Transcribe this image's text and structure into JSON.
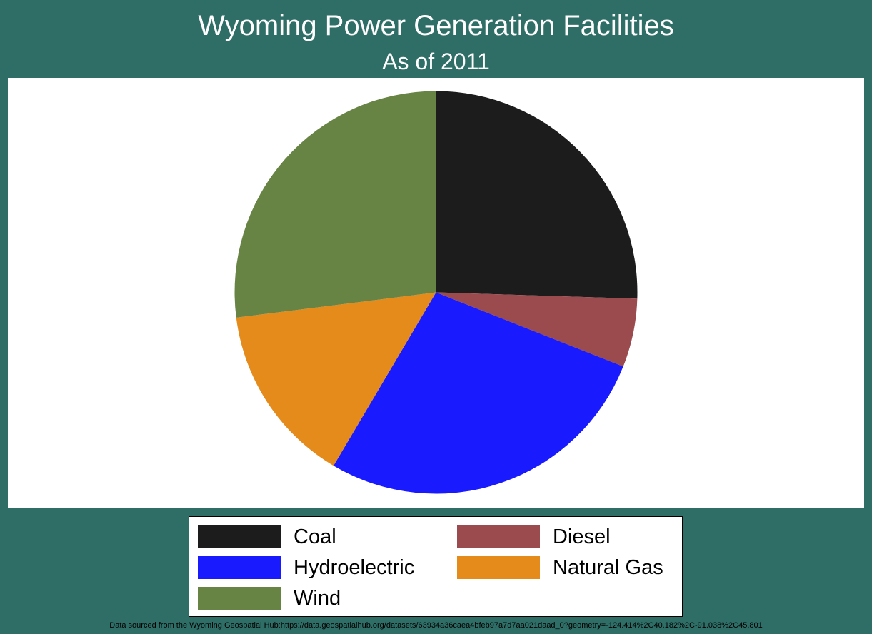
{
  "chart_data": {
    "type": "pie",
    "title": "Wyoming Power Generation Facilities",
    "subtitle": "As of 2011",
    "slices": [
      {
        "label": "Coal",
        "value": 25.5,
        "color": "#1c1c1c"
      },
      {
        "label": "Diesel",
        "value": 5.5,
        "color": "#9b4a4e"
      },
      {
        "label": "Hydroelectric",
        "value": 27.5,
        "color": "#1a1aff"
      },
      {
        "label": "Natural Gas",
        "value": 14.5,
        "color": "#e48b1c"
      },
      {
        "label": "Wind",
        "value": 27.0,
        "color": "#678444"
      }
    ],
    "legend_order": [
      "Coal",
      "Diesel",
      "Hydroelectric",
      "Natural Gas",
      "Wind"
    ],
    "legend_placement": "bottom",
    "source_note": "Data sourced from the Wyoming Geospatial Hub:https://data.geospatialhub.org/datasets/63934a36caea4bfeb97a7d7aa021daad_0?geometry=-124.414%2C40.182%2C-91.038%2C45.801"
  },
  "colors": {
    "background": "#2e6e66",
    "plot_background": "#ffffff"
  }
}
